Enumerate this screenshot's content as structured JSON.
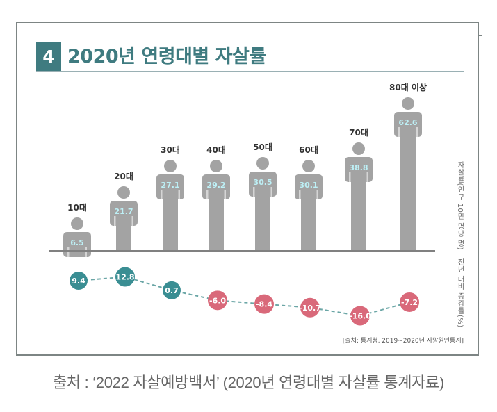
{
  "header": {
    "number": "4",
    "title": "2020년 연령대별 자살률"
  },
  "axis_labels": {
    "right_top": "자살률(인구 10만 명당 명)",
    "right_bottom": "전년 대비 증감률(%)"
  },
  "source_inner": "[출처: 통계청, 2019~2020년 사망원인통계]",
  "caption": "출처 : ‘2022 자살예방백서’ (2020년 연령대별 자살률 통계자료)",
  "colors": {
    "accent": "#3f7b80",
    "figure": "#a3a3a3",
    "value_text": "#bdf0f6",
    "positive": "#3a8e93",
    "negative": "#d9697a",
    "dash": "#6ba6a6"
  },
  "chart_data": {
    "type": "bar",
    "title": "2020년 연령대별 자살률",
    "categories": [
      "10대",
      "20대",
      "30대",
      "40대",
      "50대",
      "60대",
      "70대",
      "80대 이상"
    ],
    "series": [
      {
        "name": "자살률(인구 10만 명당 명)",
        "values": [
          6.5,
          21.7,
          27.1,
          29.2,
          30.5,
          30.1,
          38.8,
          62.6
        ],
        "labels": [
          "6.5",
          "21.7",
          "27.1",
          "29.2",
          "30.5",
          "30.1",
          "38.8",
          "62.6"
        ]
      },
      {
        "name": "전년 대비 증감률(%)",
        "type": "line",
        "values": [
          9.4,
          12.8,
          0.7,
          -6.0,
          -8.4,
          -10.7,
          -16.0,
          -7.2
        ],
        "labels": [
          "9.4",
          "12.8",
          "0.7",
          "-6.0",
          "-8.4",
          "-10.7",
          "-16.0",
          "-7.2"
        ]
      }
    ],
    "xlabel": "",
    "ylabel": "자살률(인구 10만 명당 명)",
    "ylabel2": "전년 대비 증감률(%)",
    "grid": false,
    "legend": "none"
  }
}
